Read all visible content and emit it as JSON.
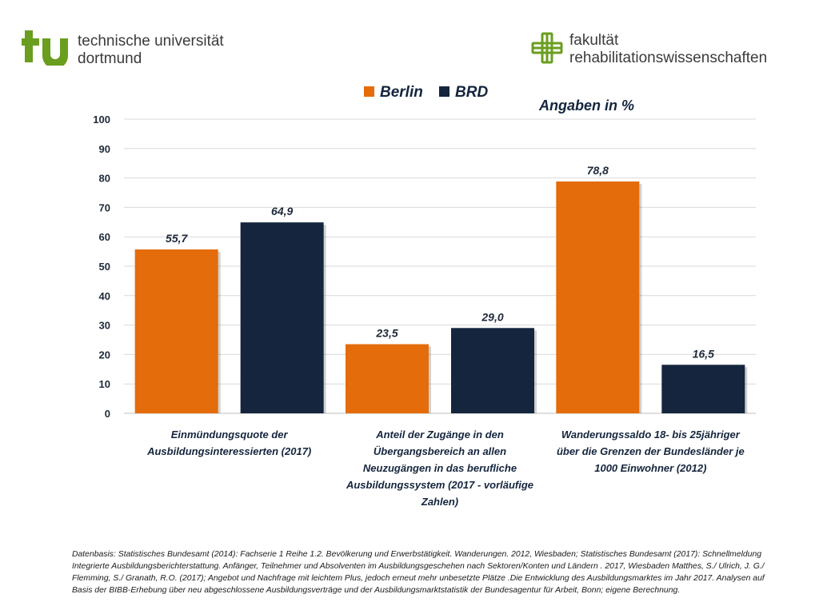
{
  "header": {
    "university_lines": [
      "technische universität",
      "dortmund"
    ],
    "faculty_lines": [
      "fakultät",
      "rehabilitationswissenschaften"
    ],
    "brand_green": "#6a9e1f"
  },
  "chart_data": {
    "type": "bar",
    "unit_label": "Angaben in %",
    "ylim": [
      0,
      100
    ],
    "yticks": [
      0,
      10,
      20,
      30,
      40,
      50,
      60,
      70,
      80,
      90,
      100
    ],
    "grid": true,
    "legend_position": "top",
    "categories": [
      [
        "Einmündungsquote der",
        "Ausbildungsinteressierten (2017)"
      ],
      [
        "Anteil der Zugänge in den",
        "Übergangsbereich an allen",
        "Neuzugängen in das berufliche",
        "Ausbildungssystem (2017 - vorläufige",
        "Zahlen)"
      ],
      [
        "Wanderungssaldo 18- bis 25jähriger",
        "über die Grenzen der Bundesländer je",
        "1000 Einwohner (2012)"
      ]
    ],
    "series": [
      {
        "name": "Berlin",
        "color": "#e46c0a",
        "values": [
          55.7,
          23.5,
          78.8
        ],
        "labels": [
          "55,7",
          "23,5",
          "78,8"
        ]
      },
      {
        "name": "BRD",
        "color": "#14253d",
        "values": [
          64.9,
          29.0,
          16.5
        ],
        "labels": [
          "64,9",
          "29,0",
          "16,5"
        ]
      }
    ]
  },
  "source_note": "Datenbasis:  Statistisches Bundesamt (2014): Fachserie 1 Reihe 1.2. Bevölkerung und Erwerbstätigkeit. Wanderungen. 2012, Wiesbaden; Statistisches Bundesamt (2017): Schnellmeldung Integrierte Ausbildungsberichterstattung. Anfänger, Teilnehmer und Absolventen im Ausbildungsgeschehen nach Sektoren/Konten und Ländern . 2017, Wiesbaden Matthes, S./ Ulrich, J. G./ Flemming, S./ Granath, R.O. (2017); Angebot und Nachfrage mit leichtem Plus, jedoch erneut mehr unbesetzte Plätze .Die Entwicklung des Ausbildungsmarktes im Jahr 2017. Analysen auf Basis der BIBB-Erhebung über neu abgeschlossene Ausbildungsverträge und der Ausbildungsmarktstatistik der Bundesagentur für Arbeit, Bonn; eigene Berechnung."
}
